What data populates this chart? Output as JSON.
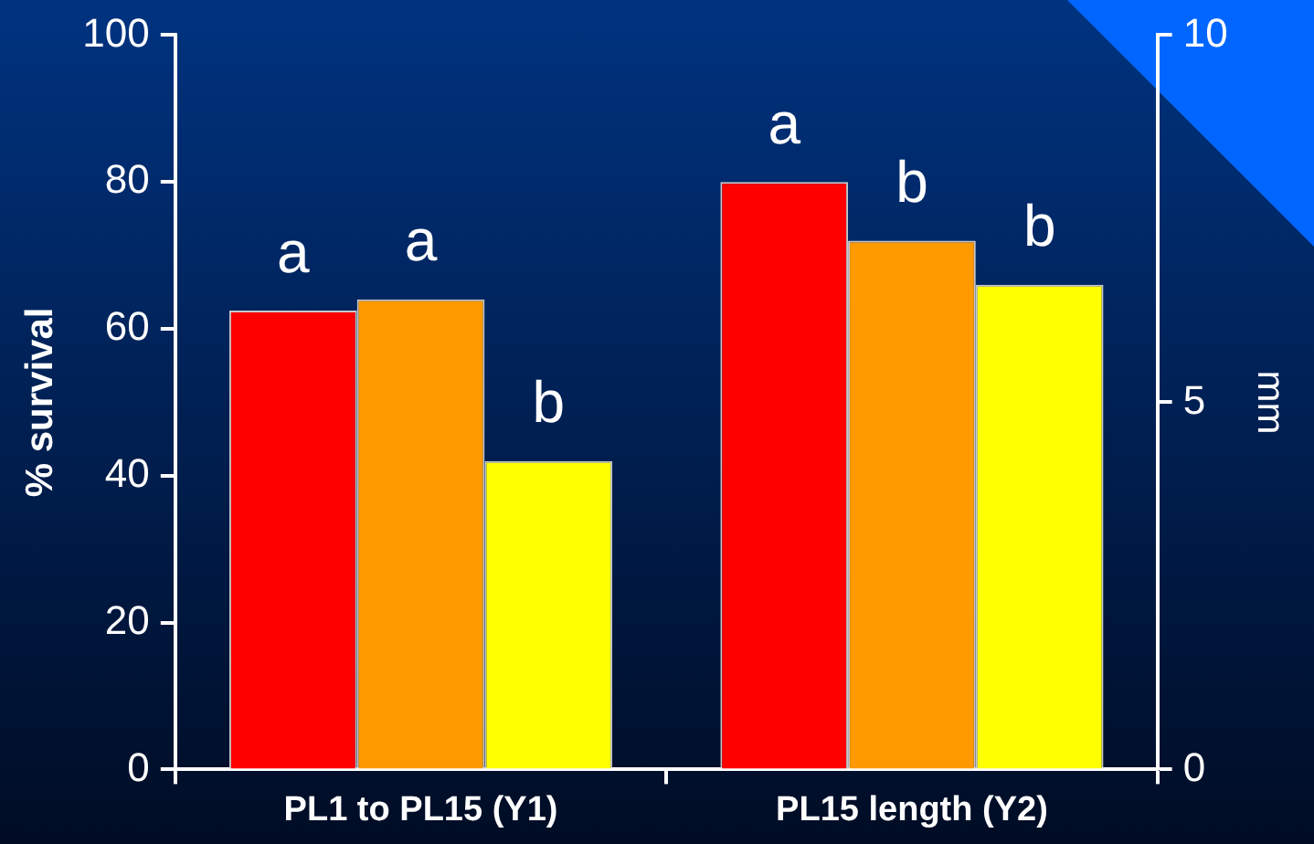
{
  "chart_data": {
    "type": "bar",
    "categories": [
      "PL1 to PL15 (Y1)",
      "PL15 length (Y2)"
    ],
    "ylabel": "% survival",
    "y2label": "mm",
    "ylim": [
      0,
      100
    ],
    "yticks": [
      0,
      20,
      40,
      60,
      80,
      100
    ],
    "y2lim": [
      0,
      10
    ],
    "y2ticks": [
      0,
      5,
      10
    ],
    "grid": false,
    "legend": false,
    "series": [
      {
        "color": "#ff0000",
        "values": [
          62.5,
          null
        ],
        "value_labels": [
          "a",
          null
        ]
      },
      {
        "color": "#ff9900",
        "values": [
          64,
          null
        ],
        "value_labels": [
          "a",
          null
        ]
      },
      {
        "color": "#ffff00",
        "values": [
          42,
          null
        ],
        "value_labels": [
          "b",
          null
        ]
      },
      {
        "color": "#ff0000",
        "axis": "y2",
        "values": [
          null,
          8.0
        ],
        "value_labels": [
          null,
          "a"
        ]
      },
      {
        "color": "#ff9900",
        "axis": "y2",
        "values": [
          null,
          7.2
        ],
        "value_labels": [
          null,
          "b"
        ]
      },
      {
        "color": "#ffff00",
        "axis": "y2",
        "values": [
          null,
          6.6
        ],
        "value_labels": [
          null,
          "b"
        ]
      }
    ]
  }
}
